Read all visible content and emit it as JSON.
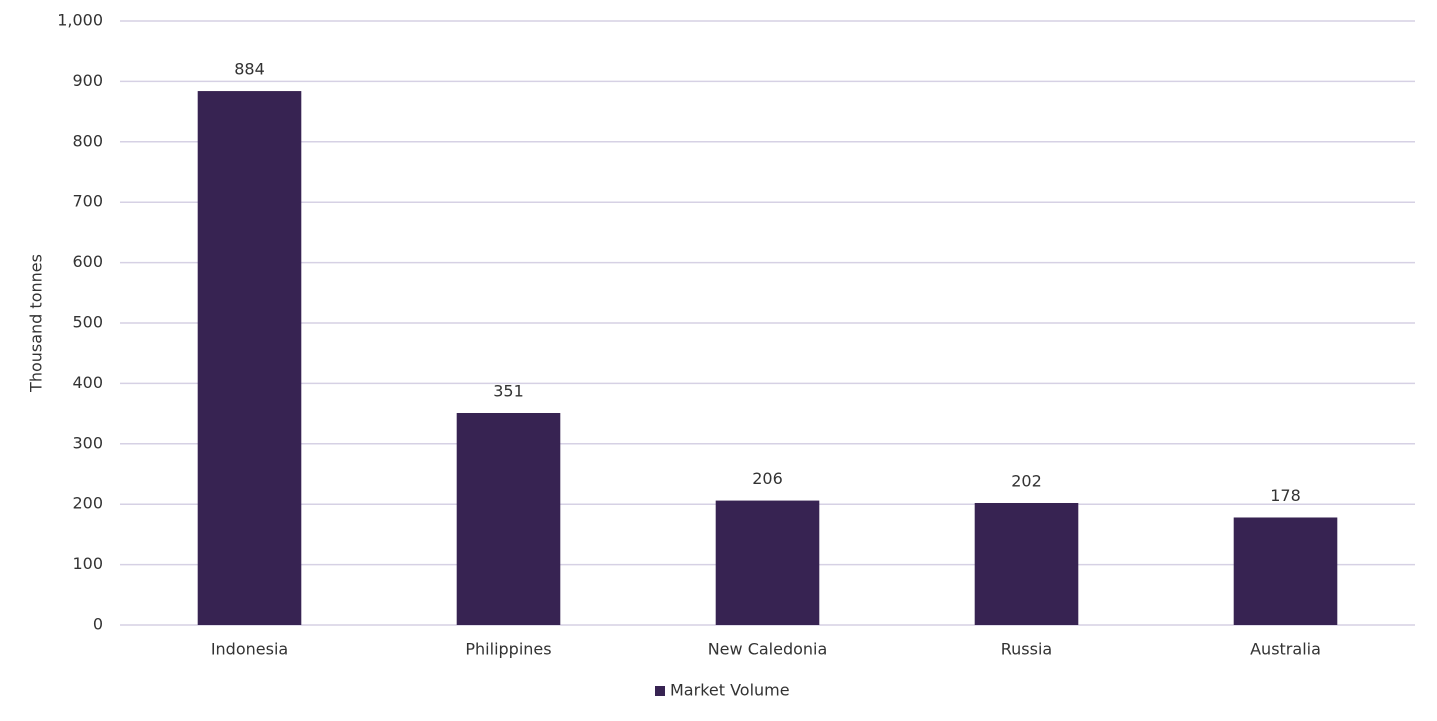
{
  "chart_data": {
    "type": "bar",
    "y_label": "Thousand tonnes",
    "categories": [
      "Indonesia",
      "Philippines",
      "New Caledonia",
      "Russia",
      "Australia"
    ],
    "series": [
      {
        "name": "Market Volume",
        "color": "#372352",
        "values": [
          884,
          351,
          206,
          202,
          178
        ]
      }
    ],
    "ylim": [
      0,
      1000
    ],
    "yticks": [
      0,
      100,
      200,
      300,
      400,
      500,
      600,
      700,
      800,
      900,
      {
        "value": 1000,
        "label": "1,000"
      }
    ],
    "grid": true,
    "legend": "bottom"
  }
}
